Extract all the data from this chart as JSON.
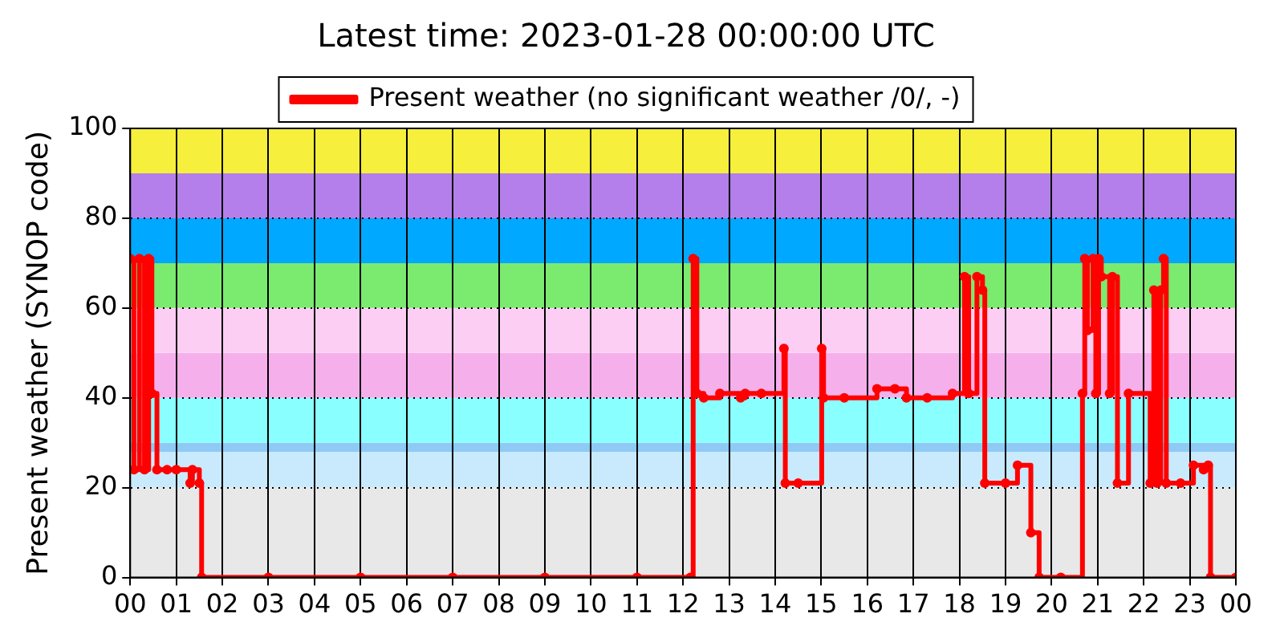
{
  "chart_data": {
    "type": "step",
    "title": "Latest time: 2023-01-28 00:00:00 UTC",
    "ylabel": "Present weather (SYNOP code)",
    "xlim": [
      0,
      24
    ],
    "xticks": [
      {
        "value": 0,
        "label": "00"
      },
      {
        "value": 1,
        "label": "01"
      },
      {
        "value": 2,
        "label": "02"
      },
      {
        "value": 3,
        "label": "03"
      },
      {
        "value": 4,
        "label": "04"
      },
      {
        "value": 5,
        "label": "05"
      },
      {
        "value": 6,
        "label": "06"
      },
      {
        "value": 7,
        "label": "07"
      },
      {
        "value": 8,
        "label": "08"
      },
      {
        "value": 9,
        "label": "09"
      },
      {
        "value": 10,
        "label": "10"
      },
      {
        "value": 11,
        "label": "11"
      },
      {
        "value": 12,
        "label": "12"
      },
      {
        "value": 13,
        "label": "13"
      },
      {
        "value": 14,
        "label": "14"
      },
      {
        "value": 15,
        "label": "15"
      },
      {
        "value": 16,
        "label": "16"
      },
      {
        "value": 17,
        "label": "17"
      },
      {
        "value": 18,
        "label": "18"
      },
      {
        "value": 19,
        "label": "19"
      },
      {
        "value": 20,
        "label": "20"
      },
      {
        "value": 21,
        "label": "21"
      },
      {
        "value": 22,
        "label": "22"
      },
      {
        "value": 23,
        "label": "23"
      },
      {
        "value": 24,
        "label": "00"
      }
    ],
    "ylim": [
      0,
      100
    ],
    "yticks": [
      0,
      20,
      40,
      60,
      80,
      100
    ],
    "grid": true,
    "legend": "top",
    "marker": "circle",
    "line_style": "solid",
    "x": [
      0,
      0.08,
      0.2,
      0.31,
      0.4,
      0.47,
      0.58,
      0.8,
      1.0,
      1.3,
      1.35,
      1.5,
      1.55,
      3,
      5,
      7,
      9,
      11,
      12.16,
      12.22,
      12.3,
      12.45,
      12.8,
      13.25,
      13.35,
      13.7,
      14.19,
      14.22,
      14.5,
      15.01,
      15.05,
      15.5,
      16.21,
      16.6,
      16.85,
      17.3,
      17.85,
      18.11,
      18.2,
      18.38,
      18.5,
      18.55,
      19.0,
      19.26,
      19.55,
      19.73,
      20.2,
      20.67,
      20.72,
      20.78,
      20.9,
      20.96,
      21.02,
      21.08,
      21.26,
      21.32,
      21.43,
      21.67,
      22.14,
      22.22,
      22.29,
      22.37,
      22.43,
      22.49,
      22.8,
      23.08,
      23.3,
      23.4,
      23.45,
      24
    ],
    "series": [
      {
        "name": "Present weather (no significant weather /0/, -)",
        "color": "#ff0000",
        "values": [
          71,
          24,
          71,
          24,
          71,
          41,
          24,
          24,
          24,
          21,
          24,
          21,
          0,
          0,
          0,
          0,
          0,
          0,
          0,
          71,
          41,
          40,
          41,
          40,
          41,
          41,
          51,
          21,
          21,
          51,
          40,
          40,
          42,
          42,
          40,
          40,
          41,
          67,
          41,
          67,
          64,
          21,
          21,
          25,
          10,
          0,
          0,
          41,
          71,
          55,
          71,
          41,
          71,
          67,
          41,
          67,
          21,
          41,
          21,
          64,
          21,
          64,
          71,
          21,
          21,
          25,
          24,
          25,
          0,
          0
        ]
      }
    ],
    "bands": [
      {
        "axis": "y",
        "from": 0,
        "to": 20,
        "color": "#e8e8e8"
      },
      {
        "axis": "y",
        "from": 20,
        "to": 28,
        "color": "#c8eafc"
      },
      {
        "axis": "y",
        "from": 28,
        "to": 30,
        "color": "#8ecaf5"
      },
      {
        "axis": "y",
        "from": 30,
        "to": 40,
        "color": "#8affff"
      },
      {
        "axis": "y",
        "from": 40,
        "to": 50,
        "color": "#f5b0ec"
      },
      {
        "axis": "y",
        "from": 50,
        "to": 60,
        "color": "#fccef4"
      },
      {
        "axis": "y",
        "from": 60,
        "to": 70,
        "color": "#7aeb6e"
      },
      {
        "axis": "y",
        "from": 70,
        "to": 80,
        "color": "#00a8ff"
      },
      {
        "axis": "y",
        "from": 80,
        "to": 90,
        "color": "#b47fea"
      },
      {
        "axis": "y",
        "from": 90,
        "to": 100,
        "color": "#f6ef3c"
      }
    ]
  }
}
